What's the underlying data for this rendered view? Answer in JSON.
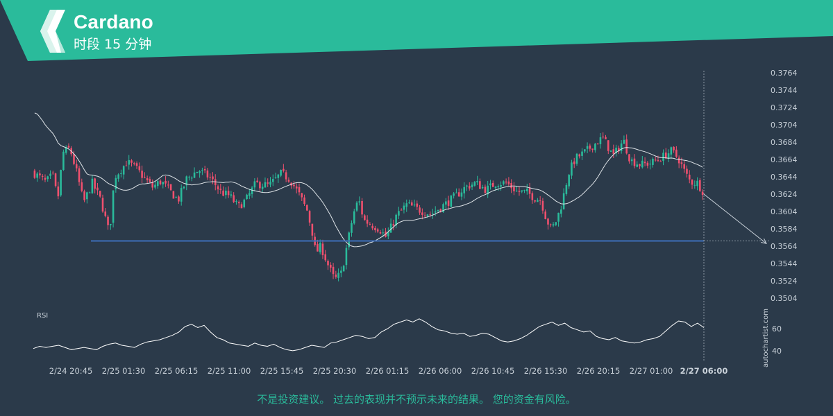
{
  "header": {
    "title": "Cardano",
    "subtitle": "时段 15 分钟",
    "accent_color": "#2abb9b",
    "logo_icon": "autochartist-logo-icon"
  },
  "disclaimer": "不是投资建议。 过去的表现并不预示未来的结果。 您的资金有风险。",
  "watermark": "autochartist.com",
  "chart_data": [
    {
      "type": "candlestick",
      "title": "Cardano",
      "subtitle": "时段 15 分钟",
      "y_ticks": [
        "0.3764",
        "0.3744",
        "0.3724",
        "0.3704",
        "0.3684",
        "0.3664",
        "0.3644",
        "0.3624",
        "0.3604",
        "0.3584",
        "0.3564",
        "0.3544",
        "0.3524",
        "0.3504"
      ],
      "ylim": [
        0.3494,
        0.377
      ],
      "x_ticks": [
        "2/24 20:45",
        "2/25 01:30",
        "2/25 06:15",
        "2/25 11:00",
        "2/25 15:45",
        "2/25 20:30",
        "2/26 01:15",
        "2/26 06:00",
        "2/26 10:45",
        "2/26 15:30",
        "2/26 20:15",
        "2/27 01:00",
        "2/27 06:00"
      ],
      "last_x_label_highlight": "2/27 06:00",
      "candle_count": 256,
      "up_color": "#2abb9b",
      "down_color": "#f0506e",
      "price_path": [
        [
          0,
          0.365
        ],
        [
          8,
          0.3638
        ],
        [
          12,
          0.3646
        ],
        [
          15,
          0.3618
        ],
        [
          18,
          0.3672
        ],
        [
          22,
          0.3677
        ],
        [
          26,
          0.3649
        ],
        [
          30,
          0.3614
        ],
        [
          35,
          0.3637
        ],
        [
          40,
          0.3617
        ],
        [
          45,
          0.3578
        ],
        [
          48,
          0.3644
        ],
        [
          52,
          0.3653
        ],
        [
          55,
          0.3661
        ],
        [
          60,
          0.3655
        ],
        [
          66,
          0.3641
        ],
        [
          70,
          0.3632
        ],
        [
          75,
          0.3639
        ],
        [
          80,
          0.3628
        ],
        [
          85,
          0.3617
        ],
        [
          90,
          0.3642
        ],
        [
          97,
          0.3652
        ],
        [
          104,
          0.3642
        ],
        [
          110,
          0.3626
        ],
        [
          115,
          0.3622
        ],
        [
          120,
          0.3609
        ],
        [
          125,
          0.3619
        ],
        [
          130,
          0.3636
        ],
        [
          138,
          0.3634
        ],
        [
          145,
          0.3648
        ],
        [
          150,
          0.3641
        ],
        [
          155,
          0.3625
        ],
        [
          160,
          0.3605
        ],
        [
          163,
          0.358
        ],
        [
          165,
          0.3556
        ],
        [
          168,
          0.3564
        ],
        [
          172,
          0.3543
        ],
        [
          176,
          0.3525
        ],
        [
          180,
          0.3533
        ],
        [
          183,
          0.3563
        ],
        [
          187,
          0.3602
        ],
        [
          190,
          0.3618
        ],
        [
          193,
          0.3594
        ],
        [
          198,
          0.3588
        ],
        [
          202,
          0.3584
        ],
        [
          206,
          0.3574
        ],
        [
          212,
          0.3599
        ],
        [
          218,
          0.3612
        ],
        [
          225,
          0.3606
        ],
        [
          232,
          0.3601
        ],
        [
          240,
          0.3612
        ],
        [
          246,
          0.3621
        ],
        [
          252,
          0.3632
        ],
        [
          258,
          0.3637
        ],
        [
          264,
          0.3629
        ],
        [
          270,
          0.3637
        ],
        [
          276,
          0.3637
        ],
        [
          282,
          0.3627
        ],
        [
          288,
          0.3626
        ],
        [
          292,
          0.362
        ],
        [
          296,
          0.3617
        ],
        [
          299,
          0.3596
        ],
        [
          302,
          0.3583
        ],
        [
          305,
          0.3594
        ],
        [
          308,
          0.3612
        ],
        [
          312,
          0.3648
        ],
        [
          316,
          0.3665
        ],
        [
          322,
          0.3673
        ],
        [
          326,
          0.368
        ],
        [
          332,
          0.3689
        ],
        [
          338,
          0.3668
        ],
        [
          344,
          0.3686
        ],
        [
          348,
          0.3663
        ],
        [
          354,
          0.3658
        ],
        [
          360,
          0.366
        ],
        [
          366,
          0.3666
        ],
        [
          372,
          0.3674
        ],
        [
          376,
          0.3665
        ],
        [
          380,
          0.3648
        ],
        [
          383,
          0.3638
        ],
        [
          387,
          0.3637
        ],
        [
          390,
          0.3628
        ]
      ],
      "moving_average_color": "#dfe4e8",
      "support_line": {
        "value": 0.357,
        "color": "#3c6db8"
      },
      "forecast_arrow": {
        "from_value": 0.3624,
        "to_value": 0.3567,
        "color": "#c9d1d9"
      },
      "cursor_line": {
        "index": 256
      },
      "grid": false
    },
    {
      "type": "line",
      "title": "RSI",
      "y_ticks": [
        "60",
        "40"
      ],
      "ylim": [
        28,
        72
      ],
      "line_color": "#ffffff",
      "values": [
        42,
        44,
        43,
        44,
        45,
        43,
        41,
        42,
        43,
        42,
        41,
        44,
        46,
        47,
        45,
        44,
        43,
        46,
        48,
        49,
        50,
        52,
        54,
        57,
        62,
        64,
        61,
        63,
        57,
        52,
        50,
        47,
        46,
        45,
        44,
        47,
        45,
        44,
        46,
        43,
        41,
        40,
        41,
        43,
        45,
        44,
        43,
        47,
        48,
        50,
        52,
        54,
        53,
        51,
        52,
        57,
        60,
        64,
        66,
        68,
        66,
        69,
        66,
        62,
        59,
        58,
        56,
        55,
        56,
        53,
        54,
        56,
        55,
        52,
        49,
        48,
        49,
        51,
        54,
        58,
        62,
        64,
        66,
        63,
        65,
        61,
        59,
        57,
        58,
        53,
        51,
        50,
        52,
        49,
        48,
        47,
        48,
        50,
        51,
        53,
        58,
        63,
        67,
        66,
        62,
        65,
        61
      ]
    }
  ]
}
